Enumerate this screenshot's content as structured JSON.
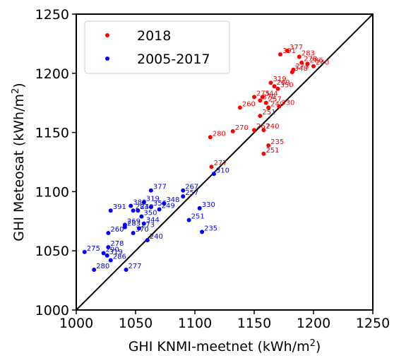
{
  "chart_data": {
    "type": "scatter",
    "xlabel": "GHI KNMI-meetnet (kWh/m²)",
    "ylabel": "GHI Meteosat (kWh/m²)",
    "xlim": [
      1000,
      1250
    ],
    "ylim": [
      1000,
      1250
    ],
    "xticks": [
      "1000",
      "1050",
      "1100",
      "1150",
      "1200",
      "1250"
    ],
    "yticks": [
      "1000",
      "1050",
      "1100",
      "1150",
      "1200",
      "1250"
    ],
    "reference_line": "1:1",
    "grid": false,
    "legend_position": "top-left",
    "series": [
      {
        "name": "2018",
        "color": "#ff0000",
        "points": [
          {
            "label": "391",
            "x": 1172,
            "y": 1216
          },
          {
            "label": "377",
            "x": 1178,
            "y": 1219
          },
          {
            "label": "283",
            "x": 1188,
            "y": 1214
          },
          {
            "label": "278",
            "x": 1190,
            "y": 1209
          },
          {
            "label": "286",
            "x": 1195,
            "y": 1208
          },
          {
            "label": "240",
            "x": 1200,
            "y": 1206
          },
          {
            "label": "273",
            "x": 1183,
            "y": 1203
          },
          {
            "label": "348",
            "x": 1182,
            "y": 1201
          },
          {
            "label": "319",
            "x": 1164,
            "y": 1192
          },
          {
            "label": "269",
            "x": 1167,
            "y": 1189
          },
          {
            "label": "350",
            "x": 1170,
            "y": 1187
          },
          {
            "label": "275",
            "x": 1150,
            "y": 1180
          },
          {
            "label": "344",
            "x": 1157,
            "y": 1180
          },
          {
            "label": "370",
            "x": 1155,
            "y": 1177
          },
          {
            "label": "257",
            "x": 1160,
            "y": 1175
          },
          {
            "label": "249",
            "x": 1162,
            "y": 1171
          },
          {
            "label": "330",
            "x": 1171,
            "y": 1172
          },
          {
            "label": "260",
            "x": 1138,
            "y": 1171
          },
          {
            "label": "251",
            "x": 1155,
            "y": 1164
          },
          {
            "label": "240",
            "x": 1158,
            "y": 1152
          },
          {
            "label": "270",
            "x": 1132,
            "y": 1151
          },
          {
            "label": "267",
            "x": 1150,
            "y": 1152
          },
          {
            "label": "280",
            "x": 1113,
            "y": 1146
          },
          {
            "label": "235",
            "x": 1162,
            "y": 1139
          },
          {
            "label": "251",
            "x": 1158,
            "y": 1132
          },
          {
            "label": "277",
            "x": 1114,
            "y": 1121
          }
        ]
      },
      {
        "name": "2005-2017",
        "color": "#0000ff",
        "points": [
          {
            "label": "310",
            "x": 1116,
            "y": 1115
          },
          {
            "label": "377",
            "x": 1063,
            "y": 1101
          },
          {
            "label": "267",
            "x": 1090,
            "y": 1101
          },
          {
            "label": "257",
            "x": 1090,
            "y": 1096
          },
          {
            "label": "319",
            "x": 1057,
            "y": 1091
          },
          {
            "label": "348",
            "x": 1074,
            "y": 1090
          },
          {
            "label": "330",
            "x": 1104,
            "y": 1086
          },
          {
            "label": "391",
            "x": 1029,
            "y": 1084
          },
          {
            "label": "380",
            "x": 1046,
            "y": 1088
          },
          {
            "label": "356",
            "x": 1063,
            "y": 1087
          },
          {
            "label": "249",
            "x": 1070,
            "y": 1085
          },
          {
            "label": "240",
            "x": 1052,
            "y": 1084
          },
          {
            "label": "283",
            "x": 1048,
            "y": 1084
          },
          {
            "label": "350",
            "x": 1055,
            "y": 1079
          },
          {
            "label": "251",
            "x": 1095,
            "y": 1076
          },
          {
            "label": "269",
            "x": 1041,
            "y": 1072
          },
          {
            "label": "283",
            "x": 1041,
            "y": 1070
          },
          {
            "label": "273",
            "x": 1053,
            "y": 1069
          },
          {
            "label": "344",
            "x": 1057,
            "y": 1073
          },
          {
            "label": "370",
            "x": 1048,
            "y": 1065
          },
          {
            "label": "235",
            "x": 1106,
            "y": 1066
          },
          {
            "label": "260",
            "x": 1027,
            "y": 1065
          },
          {
            "label": "240",
            "x": 1060,
            "y": 1059
          },
          {
            "label": "278",
            "x": 1027,
            "y": 1053
          },
          {
            "label": "290",
            "x": 1023,
            "y": 1048
          },
          {
            "label": "275",
            "x": 1007,
            "y": 1049
          },
          {
            "label": "319",
            "x": 1026,
            "y": 1046
          },
          {
            "label": "286",
            "x": 1029,
            "y": 1042
          },
          {
            "label": "280",
            "x": 1015,
            "y": 1034
          },
          {
            "label": "277",
            "x": 1042,
            "y": 1034
          }
        ]
      }
    ]
  }
}
